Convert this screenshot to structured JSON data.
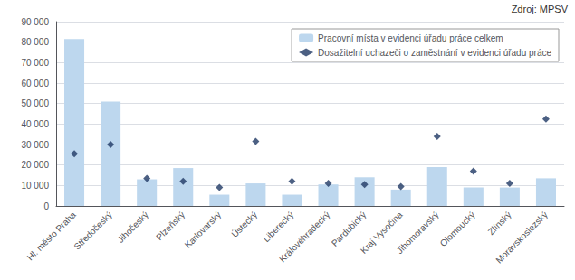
{
  "chart_data": {
    "type": "bar",
    "categories": [
      "Hl. město Praha",
      "Středočeský",
      "Jihočeský",
      "Plzeňský",
      "Karlovarský",
      "Ústecký",
      "Liberecký",
      "Královéhradecký",
      "Pardubický",
      "Kraj Vysočina",
      "Jihomoravský",
      "Olomoucký",
      "Zlínský",
      "Moravskoslezský"
    ],
    "series": [
      {
        "name": "Pracovní místa v evidenci úřadu práce celkem",
        "type": "bar",
        "color": "#BDD7EE",
        "values": [
          81500,
          51000,
          13000,
          18500,
          5500,
          11000,
          5500,
          10500,
          14000,
          8000,
          19000,
          9000,
          9000,
          13500
        ]
      },
      {
        "name": "Dosažitelní uchazeči o zaměstnání v evidenci úřadu práce",
        "type": "scatter",
        "color": "#1F3864",
        "marker": "diamond",
        "values": [
          25500,
          30000,
          13500,
          12000,
          9000,
          31500,
          12000,
          11000,
          10500,
          9500,
          34000,
          17000,
          11000,
          42500
        ]
      }
    ],
    "ylim": [
      0,
      90000
    ],
    "yticks": [
      0,
      {
        "value": 10000,
        "label": "10 000"
      },
      {
        "value": 20000,
        "label": "20 000"
      },
      {
        "value": 30000,
        "label": "30 000"
      },
      {
        "value": 40000,
        "label": "40 000"
      },
      {
        "value": 50000,
        "label": "50 000"
      },
      {
        "value": 60000,
        "label": "60 000"
      },
      {
        "value": 70000,
        "label": "70 000"
      },
      {
        "value": 80000,
        "label": "80 000"
      },
      {
        "value": 90000,
        "label": "90 000"
      }
    ],
    "grid": true,
    "legend": "upper right",
    "annotations": [
      "Zdroj: MPSV"
    ]
  }
}
